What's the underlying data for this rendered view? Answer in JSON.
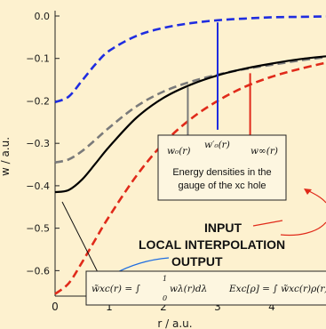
{
  "chart_data": {
    "type": "line",
    "xlabel": "r / a.u.",
    "ylabel": "w / a.u.",
    "xlim": [
      0,
      5.0
    ],
    "ylim": [
      -0.66,
      0.0
    ],
    "x_ticks": [
      0,
      1,
      2,
      3,
      4
    ],
    "x_tick_labels": [
      "0",
      "1",
      "2",
      "3",
      "4"
    ],
    "y_ticks": [
      0.0,
      -0.1,
      -0.2,
      -0.3,
      -0.4,
      -0.5,
      -0.6
    ],
    "y_tick_labels": [
      "0.0",
      "−0.1",
      "−0.2",
      "−0.3",
      "−0.4",
      "−0.5",
      "−0.6"
    ],
    "series": [
      {
        "color": "#1f2de0",
        "style": "dashed",
        "x": [
          0,
          0.25,
          0.5,
          0.75,
          1.0,
          1.5,
          2.0,
          2.5,
          3.0,
          3.5,
          4.0,
          4.5,
          5.0
        ],
        "y": [
          -0.203,
          -0.19,
          -0.152,
          -0.113,
          -0.082,
          -0.047,
          -0.028,
          -0.017,
          -0.01,
          -0.006,
          -0.003,
          -0.002,
          -0.001
        ]
      },
      {
        "color": "#7a7a7a",
        "style": "dashed",
        "x": [
          0,
          0.25,
          0.5,
          0.75,
          1.0,
          1.5,
          2.0,
          2.5,
          3.0,
          3.5,
          4.0,
          4.5,
          5.0
        ],
        "y": [
          -0.345,
          -0.338,
          -0.318,
          -0.291,
          -0.263,
          -0.213,
          -0.178,
          -0.155,
          -0.138,
          -0.125,
          -0.115,
          -0.105,
          -0.097
        ]
      },
      {
        "color": "#000000",
        "style": "solid",
        "x": [
          0,
          0.25,
          0.5,
          0.75,
          1.0,
          1.5,
          2.0,
          2.5,
          3.0,
          3.5,
          4.0,
          4.5,
          5.0
        ],
        "y": [
          -0.415,
          -0.41,
          -0.385,
          -0.347,
          -0.308,
          -0.24,
          -0.193,
          -0.162,
          -0.14,
          -0.124,
          -0.112,
          -0.102,
          -0.095
        ]
      },
      {
        "color": "#e02a1a",
        "style": "dashed",
        "x": [
          0,
          0.25,
          0.5,
          0.75,
          1.0,
          1.5,
          2.0,
          2.5,
          3.0,
          3.5,
          4.0,
          4.5,
          5.0
        ],
        "y": [
          -0.655,
          -0.63,
          -0.58,
          -0.525,
          -0.472,
          -0.377,
          -0.3,
          -0.243,
          -0.2,
          -0.167,
          -0.143,
          -0.125,
          -0.11
        ]
      }
    ],
    "markers": [
      {
        "color": "#7a7a7a",
        "x": 2.45,
        "y_top": -0.168,
        "y_bottom": -0.285
      },
      {
        "color": "#1f2de0",
        "x": 3.0,
        "y_top": -0.015,
        "y_bottom": -0.268
      },
      {
        "color": "#e02a1a",
        "x": 3.6,
        "y_top": -0.135,
        "y_bottom": -0.285
      }
    ],
    "annotations": {
      "w0": "w₀(r)",
      "w0prime": "w′₀(r)",
      "winf": "w∞(r)",
      "box_line1": "Energy densities in the",
      "box_line2": "gauge of the xc hole",
      "input": "INPUT",
      "local_interpolation": "LOCAL INTERPOLATION",
      "output": "OUTPUT",
      "eq_lhs": "w̃xc(r) = ∫",
      "eq_limit_upper": "1",
      "eq_limit_lower": "0",
      "eq_rhs": "wλ(r)dλ",
      "eq2": "Exc[ρ] = ∫ w̃xc(r)ρ(r)dr"
    }
  }
}
